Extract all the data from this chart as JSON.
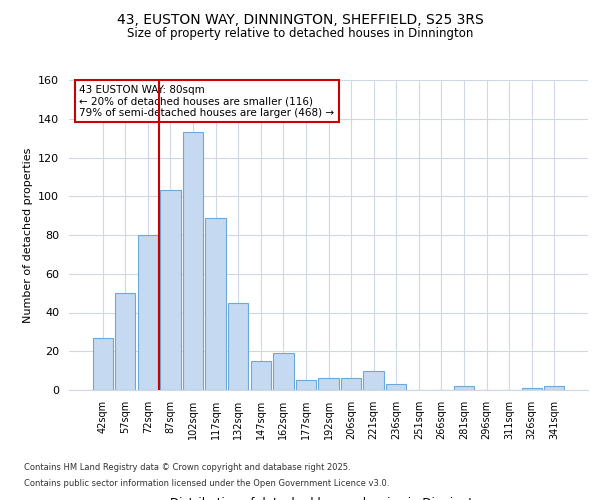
{
  "title_line1": "43, EUSTON WAY, DINNINGTON, SHEFFIELD, S25 3RS",
  "title_line2": "Size of property relative to detached houses in Dinnington",
  "xlabel": "Distribution of detached houses by size in Dinnington",
  "ylabel": "Number of detached properties",
  "categories": [
    "42sqm",
    "57sqm",
    "72sqm",
    "87sqm",
    "102sqm",
    "117sqm",
    "132sqm",
    "147sqm",
    "162sqm",
    "177sqm",
    "192sqm",
    "206sqm",
    "221sqm",
    "236sqm",
    "251sqm",
    "266sqm",
    "281sqm",
    "296sqm",
    "311sqm",
    "326sqm",
    "341sqm"
  ],
  "values": [
    27,
    50,
    80,
    103,
    133,
    89,
    45,
    15,
    19,
    5,
    6,
    6,
    10,
    3,
    0,
    0,
    2,
    0,
    0,
    1,
    2
  ],
  "bar_color": "#c5d9f0",
  "bar_edge_color": "#6baad8",
  "vline_x": 2.5,
  "vline_color": "#cc0000",
  "ylim": [
    0,
    160
  ],
  "yticks": [
    0,
    20,
    40,
    60,
    80,
    100,
    120,
    140,
    160
  ],
  "annotation_text": "43 EUSTON WAY: 80sqm\n← 20% of detached houses are smaller (116)\n79% of semi-detached houses are larger (468) →",
  "annotation_box_color": "#cc0000",
  "footer_line1": "Contains HM Land Registry data © Crown copyright and database right 2025.",
  "footer_line2": "Contains public sector information licensed under the Open Government Licence v3.0.",
  "background_color": "#ffffff",
  "plot_bg_color": "#ffffff",
  "grid_color": "#d0d8e8"
}
